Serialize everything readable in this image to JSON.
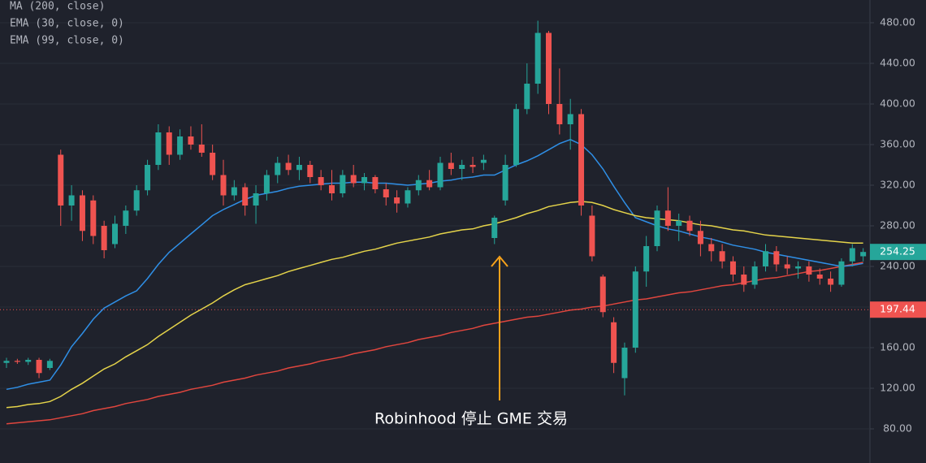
{
  "chart_data": {
    "type": "candlestick",
    "open": [
      145,
      147,
      146,
      148,
      140,
      350,
      300,
      310,
      305,
      280,
      262,
      280,
      295,
      315,
      340,
      372,
      350,
      368,
      360,
      352,
      330,
      310,
      318,
      300,
      312,
      330,
      342,
      335,
      340,
      328,
      320,
      312,
      330,
      322,
      328,
      316,
      308,
      302,
      315,
      325,
      318,
      342,
      336,
      340,
      342,
      268,
      305,
      340,
      395,
      420,
      470,
      400,
      380,
      390,
      290,
      230,
      185,
      130,
      160,
      235,
      260,
      295,
      280,
      285,
      275,
      262,
      255,
      245,
      232,
      222,
      240,
      255,
      242,
      238,
      240,
      232,
      228,
      222,
      245,
      250
    ],
    "high": [
      150,
      149,
      150,
      150,
      149,
      355,
      320,
      315,
      310,
      285,
      290,
      300,
      320,
      345,
      380,
      378,
      375,
      378,
      380,
      360,
      345,
      325,
      322,
      320,
      335,
      348,
      350,
      348,
      344,
      335,
      335,
      335,
      340,
      332,
      330,
      322,
      315,
      318,
      330,
      335,
      348,
      352,
      345,
      348,
      350,
      290,
      350,
      400,
      440,
      482,
      472,
      435,
      405,
      395,
      300,
      232,
      190,
      165,
      240,
      270,
      300,
      318,
      292,
      290,
      285,
      268,
      262,
      250,
      240,
      245,
      262,
      260,
      250,
      245,
      245,
      238,
      235,
      248,
      262,
      258
    ],
    "low": [
      140,
      144,
      143,
      130,
      138,
      280,
      285,
      265,
      262,
      248,
      258,
      272,
      290,
      310,
      335,
      340,
      345,
      355,
      348,
      325,
      300,
      305,
      290,
      282,
      305,
      322,
      330,
      325,
      322,
      315,
      305,
      308,
      318,
      315,
      312,
      300,
      293,
      298,
      310,
      315,
      315,
      330,
      325,
      332,
      335,
      262,
      300,
      338,
      390,
      410,
      390,
      370,
      355,
      290,
      245,
      190,
      135,
      113,
      155,
      220,
      255,
      275,
      265,
      270,
      250,
      245,
      238,
      225,
      215,
      218,
      235,
      235,
      232,
      228,
      225,
      222,
      215,
      220,
      240,
      245
    ],
    "close": [
      147,
      146,
      148,
      135,
      147,
      300,
      310,
      275,
      270,
      256,
      282,
      295,
      315,
      340,
      372,
      350,
      368,
      360,
      352,
      330,
      310,
      318,
      300,
      312,
      330,
      342,
      335,
      340,
      328,
      320,
      312,
      330,
      322,
      328,
      316,
      308,
      302,
      315,
      325,
      318,
      342,
      336,
      340,
      338,
      345,
      288,
      340,
      395,
      420,
      470,
      400,
      380,
      390,
      300,
      250,
      195,
      145,
      160,
      235,
      260,
      295,
      280,
      285,
      275,
      262,
      255,
      245,
      232,
      222,
      240,
      255,
      242,
      238,
      240,
      232,
      228,
      222,
      245,
      258,
      254.25
    ],
    "up_color": "#26a69a",
    "down_color": "#ef5350",
    "series": [
      {
        "name": "MA (200, close)",
        "color": "#e0463e",
        "values": [
          85,
          86,
          87,
          88,
          89,
          91,
          93,
          95,
          98,
          100,
          102,
          105,
          107,
          109,
          112,
          114,
          116,
          119,
          121,
          123,
          126,
          128,
          130,
          133,
          135,
          137,
          140,
          142,
          144,
          147,
          149,
          151,
          154,
          156,
          158,
          161,
          163,
          165,
          168,
          170,
          172,
          175,
          177,
          179,
          182,
          184,
          186,
          188,
          190,
          191,
          193,
          195,
          197,
          198,
          200,
          201,
          203,
          205,
          207,
          208,
          210,
          212,
          214,
          215,
          217,
          219,
          221,
          222,
          224,
          226,
          228,
          229,
          231,
          233,
          235,
          236,
          238,
          240,
          242,
          244
        ]
      },
      {
        "name": "EMA (30, close, 0)",
        "color": "#2f8fe6",
        "values": [
          119,
          121,
          124,
          126,
          128,
          143,
          161,
          174,
          188,
          199,
          205,
          211,
          216,
          228,
          242,
          254,
          263,
          272,
          281,
          290,
          296,
          301,
          306,
          310,
          312,
          314,
          317,
          319,
          320,
          321,
          322,
          322,
          323,
          323,
          322,
          322,
          321,
          320,
          321,
          322,
          324,
          325,
          327,
          328,
          330,
          330,
          335,
          340,
          344,
          349,
          355,
          361,
          365,
          360,
          350,
          336,
          319,
          303,
          288,
          284,
          280,
          277,
          275,
          272,
          269,
          267,
          264,
          261,
          259,
          257,
          254,
          252,
          250,
          248,
          246,
          244,
          242,
          240,
          241,
          243
        ]
      },
      {
        "name": "EMA (99, close, 0)",
        "color": "#e4d34a",
        "values": [
          101,
          102,
          104,
          105,
          107,
          112,
          119,
          125,
          132,
          139,
          144,
          151,
          157,
          163,
          171,
          178,
          185,
          192,
          198,
          204,
          211,
          217,
          222,
          225,
          228,
          231,
          235,
          238,
          241,
          244,
          247,
          249,
          252,
          255,
          257,
          260,
          263,
          265,
          267,
          269,
          272,
          274,
          276,
          277,
          280,
          282,
          285,
          288,
          292,
          295,
          299,
          301,
          303,
          304,
          303,
          300,
          296,
          293,
          290,
          288,
          287,
          286,
          285,
          283,
          281,
          280,
          278,
          276,
          275,
          273,
          271,
          270,
          269,
          268,
          267,
          266,
          265,
          264,
          263,
          263
        ]
      }
    ],
    "ylim": [
      46.4,
      502.4
    ],
    "yticks": [
      {
        "value": 80,
        "label": "80.00"
      },
      {
        "value": 120,
        "label": "120.00"
      },
      {
        "value": 160,
        "label": "160.00"
      },
      {
        "value": 200,
        "label": "200.00"
      },
      {
        "value": 240,
        "label": "240.00"
      },
      {
        "value": 280,
        "label": "280.00"
      },
      {
        "value": 320,
        "label": "320.00"
      },
      {
        "value": 360,
        "label": "360.00"
      },
      {
        "value": 400,
        "label": "400.00"
      },
      {
        "value": 440,
        "label": "440.00"
      },
      {
        "value": 480,
        "label": "480.00"
      }
    ],
    "grid": true,
    "price_lines": [
      {
        "value": 254.25,
        "color": "#26a69a",
        "dotted": false
      },
      {
        "value": 197.44,
        "color": "#ef5350",
        "dotted": true
      }
    ],
    "annotation": "Robinhood 停止 GME 交易"
  }
}
